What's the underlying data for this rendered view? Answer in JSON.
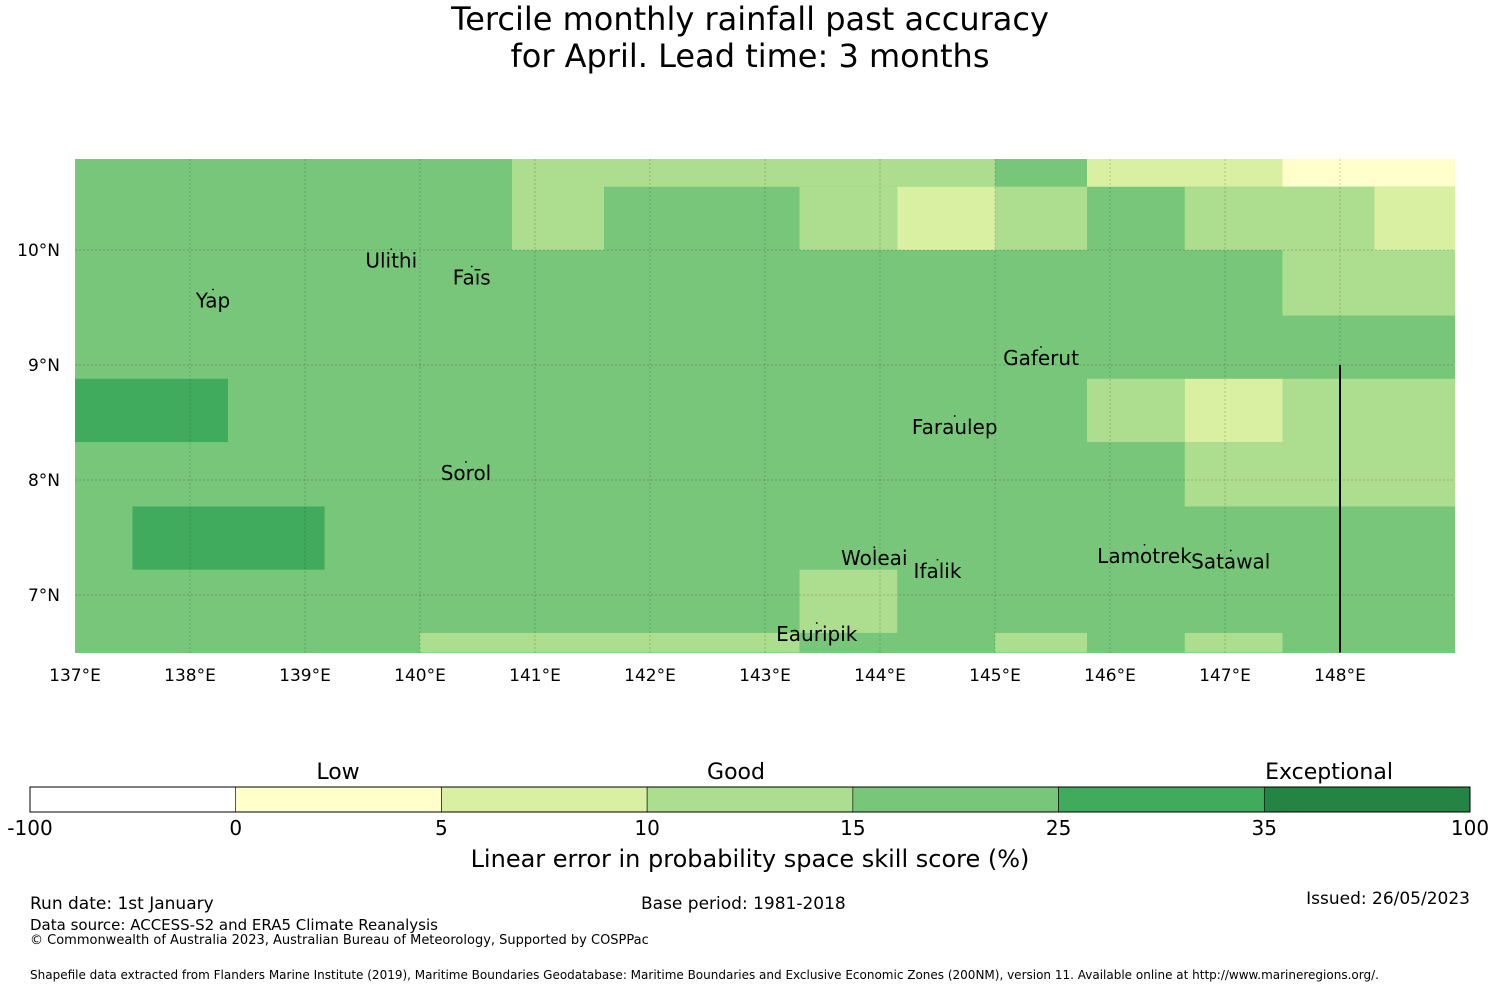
{
  "title": {
    "line1": "Tercile monthly rainfall past accuracy",
    "line2": "for April. Lead time: 3 months"
  },
  "map": {
    "lon_range": [
      137,
      149
    ],
    "lat_range": [
      6.5,
      10.8
    ],
    "lon_ticks": [
      "137°E",
      "138°E",
      "139°E",
      "140°E",
      "141°E",
      "142°E",
      "143°E",
      "144°E",
      "145°E",
      "146°E",
      "147°E",
      "148°E"
    ],
    "lat_ticks": [
      "10°N",
      "9°N",
      "8°N",
      "7°N"
    ],
    "lon_tick_values": [
      137,
      138,
      139,
      140,
      141,
      142,
      143,
      144,
      145,
      146,
      147,
      148
    ],
    "lat_tick_values": [
      10,
      9,
      8,
      7
    ],
    "grid": true,
    "base_category_color": "#78c679",
    "cells": [
      {
        "lon": [
          140.8,
          141.6
        ],
        "lat": [
          10.0,
          10.8
        ],
        "color": "#addd8e"
      },
      {
        "lon": [
          141.6,
          145.8
        ],
        "lat": [
          10.55,
          10.8
        ],
        "color": "#addd8e"
      },
      {
        "lon": [
          145.0,
          145.8
        ],
        "lat": [
          10.55,
          10.8
        ],
        "color": "#78c679"
      },
      {
        "lon": [
          145.8,
          147.5
        ],
        "lat": [
          10.55,
          10.8
        ],
        "color": "#d9f0a3"
      },
      {
        "lon": [
          147.5,
          149.0
        ],
        "lat": [
          10.55,
          10.8
        ],
        "color": "#ffffcc"
      },
      {
        "lon": [
          143.3,
          144.15
        ],
        "lat": [
          10.0,
          10.55
        ],
        "color": "#addd8e"
      },
      {
        "lon": [
          144.15,
          145.0
        ],
        "lat": [
          10.0,
          10.55
        ],
        "color": "#d9f0a3"
      },
      {
        "lon": [
          145.0,
          145.8
        ],
        "lat": [
          10.0,
          10.55
        ],
        "color": "#addd8e"
      },
      {
        "lon": [
          146.65,
          148.3
        ],
        "lat": [
          10.0,
          10.55
        ],
        "color": "#addd8e"
      },
      {
        "lon": [
          148.3,
          149.0
        ],
        "lat": [
          10.0,
          10.55
        ],
        "color": "#d9f0a3"
      },
      {
        "lon": [
          147.5,
          149.0
        ],
        "lat": [
          9.43,
          10.0
        ],
        "color": "#addd8e"
      },
      {
        "lon": [
          137.0,
          138.33
        ],
        "lat": [
          8.33,
          8.88
        ],
        "color": "#41ab5d"
      },
      {
        "lon": [
          145.8,
          146.65
        ],
        "lat": [
          8.33,
          8.88
        ],
        "color": "#addd8e"
      },
      {
        "lon": [
          146.65,
          147.5
        ],
        "lat": [
          8.33,
          8.88
        ],
        "color": "#d9f0a3"
      },
      {
        "lon": [
          147.5,
          149.0
        ],
        "lat": [
          8.33,
          8.88
        ],
        "color": "#addd8e"
      },
      {
        "lon": [
          146.65,
          149.0
        ],
        "lat": [
          7.77,
          8.33
        ],
        "color": "#addd8e"
      },
      {
        "lon": [
          137.5,
          139.17
        ],
        "lat": [
          7.22,
          7.77
        ],
        "color": "#41ab5d"
      },
      {
        "lon": [
          143.3,
          144.15
        ],
        "lat": [
          6.67,
          7.22
        ],
        "color": "#addd8e"
      },
      {
        "lon": [
          140.0,
          143.3
        ],
        "lat": [
          6.5,
          6.67
        ],
        "color": "#addd8e"
      },
      {
        "lon": [
          145.0,
          145.8
        ],
        "lat": [
          6.5,
          6.67
        ],
        "color": "#addd8e"
      },
      {
        "lon": [
          146.65,
          147.5
        ],
        "lat": [
          6.5,
          6.67
        ],
        "color": "#addd8e"
      }
    ],
    "boundary_line": {
      "lon": 148.0,
      "lat": [
        6.5,
        9.0
      ]
    },
    "places": [
      {
        "name": "Ulithi",
        "lon": 139.75,
        "lat": 9.85
      },
      {
        "name": "Faīs",
        "lon": 140.45,
        "lat": 9.7
      },
      {
        "name": "Yap",
        "lon": 138.2,
        "lat": 9.5
      },
      {
        "name": "Gaferut",
        "lon": 145.4,
        "lat": 9.0
      },
      {
        "name": "Faraulep",
        "lon": 144.65,
        "lat": 8.4
      },
      {
        "name": "Sorol",
        "lon": 140.4,
        "lat": 8.0
      },
      {
        "name": "Woleai",
        "lon": 143.95,
        "lat": 7.26
      },
      {
        "name": "Ifalik",
        "lon": 144.5,
        "lat": 7.15
      },
      {
        "name": "Lamotrek",
        "lon": 146.3,
        "lat": 7.28
      },
      {
        "name": "Satawal",
        "lon": 147.05,
        "lat": 7.23
      },
      {
        "name": "Eauripik",
        "lon": 143.45,
        "lat": 6.6
      }
    ]
  },
  "colorbar": {
    "categories": [
      {
        "label": "Low",
        "value": 2.5
      },
      {
        "label": "Good",
        "value": 15
      },
      {
        "label": "Exceptional",
        "value": 67.5
      }
    ],
    "bins": [
      {
        "from": -100,
        "to": 0,
        "color": "#ffffff"
      },
      {
        "from": 0,
        "to": 5,
        "color": "#ffffcc"
      },
      {
        "from": 5,
        "to": 10,
        "color": "#d9f0a3"
      },
      {
        "from": 10,
        "to": 15,
        "color": "#addd8e"
      },
      {
        "from": 15,
        "to": 25,
        "color": "#78c679"
      },
      {
        "from": 25,
        "to": 35,
        "color": "#41ab5d"
      },
      {
        "from": 35,
        "to": 100,
        "color": "#238443"
      }
    ],
    "tick_labels": [
      "-100",
      "0",
      "5",
      "10",
      "15",
      "25",
      "35",
      "100"
    ],
    "label": "Linear error in probability space skill score (%)"
  },
  "footer": {
    "run_date": "Run date: 1st January",
    "base_period": "Base period: 1981-2018",
    "issued": "Issued: 26/05/2023",
    "data_source": "Data source: ACCESS-S2 and ERA5 Climate Reanalysis",
    "copyright": "© Commonwealth of Australia 2023, Australian Bureau of Meteorology, Supported by COSPPac",
    "shapefile": "Shapefile data extracted from Flanders Marine Institute (2019), Maritime Boundaries Geodatabase: Maritime Boundaries and Exclusive Economic Zones (200NM), version 11. Available online at http://www.marineregions.org/."
  }
}
